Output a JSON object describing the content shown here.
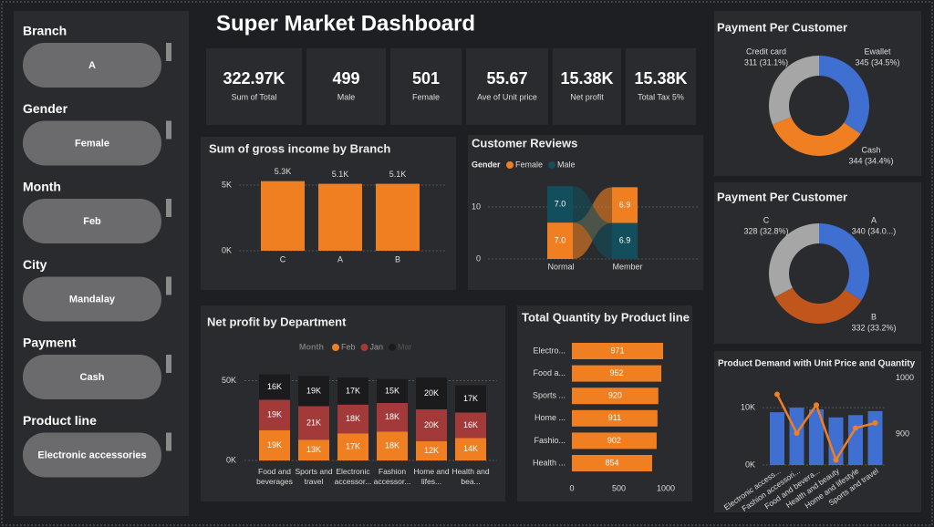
{
  "header": {
    "title": "Super Market Dashboard"
  },
  "slicers": [
    {
      "label": "Branch",
      "value": "A"
    },
    {
      "label": "Gender",
      "value": "Female"
    },
    {
      "label": "Month",
      "value": "Feb"
    },
    {
      "label": "City",
      "value": "Mandalay"
    },
    {
      "label": "Payment",
      "value": "Cash"
    },
    {
      "label": "Product line",
      "value": "Electronic accessories"
    }
  ],
  "kpis": [
    {
      "value": "322.97K",
      "label": "Sum of Total"
    },
    {
      "value": 499,
      "label": "Male"
    },
    {
      "value": 501,
      "label": "Female"
    },
    {
      "value": "55.67",
      "label": "Ave of Unit price"
    },
    {
      "value": "15.38K",
      "label": "Net profit"
    },
    {
      "value": "15.38K",
      "label": "Total Tax 5%"
    }
  ],
  "chart_data": [
    {
      "type": "bar",
      "title": "Sum of gross income by Branch",
      "categories": [
        "C",
        "A",
        "B"
      ],
      "values": [
        5300,
        5100,
        5100
      ],
      "value_labels": [
        "5.3K",
        "5.1K",
        "5.1K"
      ],
      "color": "#f07f22",
      "ylim": [
        0,
        6250
      ],
      "yticks": [
        {
          "value": 0,
          "label": "0K"
        },
        {
          "value": 5000,
          "label": "5K"
        }
      ],
      "grid": true
    },
    {
      "type": "ribbon",
      "title": "Customer Reviews",
      "legend_title": "Gender",
      "categories": [
        "Normal",
        "Member"
      ],
      "series": [
        {
          "name": "Female",
          "color": "#f07f22",
          "values": [
            7.0,
            6.9
          ],
          "value_labels": [
            "7.0",
            "6.9"
          ]
        },
        {
          "name": "Male",
          "color": "#124e5c",
          "values": [
            7.0,
            6.9
          ],
          "value_labels": [
            "7.0",
            "6.9"
          ]
        }
      ],
      "ylim": [
        0,
        15
      ],
      "yticks": [
        0,
        10
      ],
      "grid": true
    },
    {
      "type": "stacked_bar",
      "title": "Net profit by Department",
      "legend_title": "Month",
      "categories": [
        "Food and beverages",
        "Sports and travel",
        "Electronic accessor...",
        "Fashion accessor...",
        "Home and lifes...",
        "Health and bea..."
      ],
      "series": [
        {
          "name": "Feb",
          "color": "#f07f22",
          "values": [
            19000,
            13000,
            17000,
            18000,
            12000,
            14000
          ],
          "value_labels": [
            "19K",
            "13K",
            "17K",
            "18K",
            "12K",
            "14K"
          ]
        },
        {
          "name": "Jan",
          "color": "#a33a3a",
          "values": [
            19000,
            21000,
            18000,
            18000,
            20000,
            16000
          ],
          "value_labels": [
            "19K",
            "21K",
            "18K",
            "18K",
            "20K",
            "16K"
          ]
        },
        {
          "name": "Mar",
          "color": "#1b1b1d",
          "values": [
            16000,
            19000,
            17000,
            15000,
            20000,
            17000
          ],
          "value_labels": [
            "16K",
            "19K",
            "17K",
            "15K",
            "20K",
            "17K"
          ]
        }
      ],
      "ylim": [
        0,
        60000
      ],
      "yticks": [
        {
          "value": 0,
          "label": "0K"
        },
        {
          "value": 50000,
          "label": "50K"
        }
      ],
      "grid": true
    },
    {
      "type": "hbar",
      "title": "Total Quantity by Product line",
      "categories": [
        "Electro...",
        "Food a...",
        "Sports ...",
        "Home ...",
        "Fashio...",
        "Health ..."
      ],
      "values": [
        971,
        952,
        920,
        911,
        902,
        854
      ],
      "color": "#f07f22",
      "xlim": [
        0,
        1000
      ],
      "xticks": [
        0,
        500,
        1000
      ]
    },
    {
      "type": "donut",
      "title": "Payment Per Customer",
      "categories": [
        "Ewallet",
        "Cash",
        "Credit card"
      ],
      "values": [
        345,
        344,
        311
      ],
      "value_labels": [
        "345 (34.5%)",
        "344 (34.4%)",
        "311 (31.1%)"
      ],
      "colors": [
        "#3f6fd1",
        "#f07f22",
        "#a6a6a6"
      ]
    },
    {
      "type": "donut",
      "title": "Payment Per Customer",
      "categories": [
        "A",
        "B",
        "C"
      ],
      "values": [
        340,
        332,
        328
      ],
      "value_labels": [
        "340 (34.0...)",
        "332 (33.2%)",
        "328 (32.8%)"
      ],
      "colors": [
        "#3f6fd1",
        "#c0561b",
        "#a6a6a6"
      ]
    },
    {
      "type": "combo",
      "title": "Product Demand with Unit Price and Quantity",
      "categories": [
        "Electronic access...",
        "Fashion accessori...",
        "Food and bevera...",
        "Health and beauty",
        "Home and lifestyle",
        "Sports and travel"
      ],
      "series": [
        {
          "color": "#3f6fd1",
          "values": [
            9200,
            10000,
            9700,
            8300,
            8700,
            9400
          ]
        },
        {
          "color": "#f07f22",
          "values": [
            971,
            902,
            952,
            854,
            911,
            920
          ],
          "axis": "y2"
        }
      ],
      "ylim": [
        0,
        15900
      ],
      "yticks": [
        {
          "value": 0,
          "label": "0K"
        },
        {
          "value": 10000,
          "label": "10K"
        }
      ],
      "y2lim": [
        850,
        1010
      ],
      "y2ticks": [
        900,
        1000
      ],
      "grid": true
    }
  ]
}
